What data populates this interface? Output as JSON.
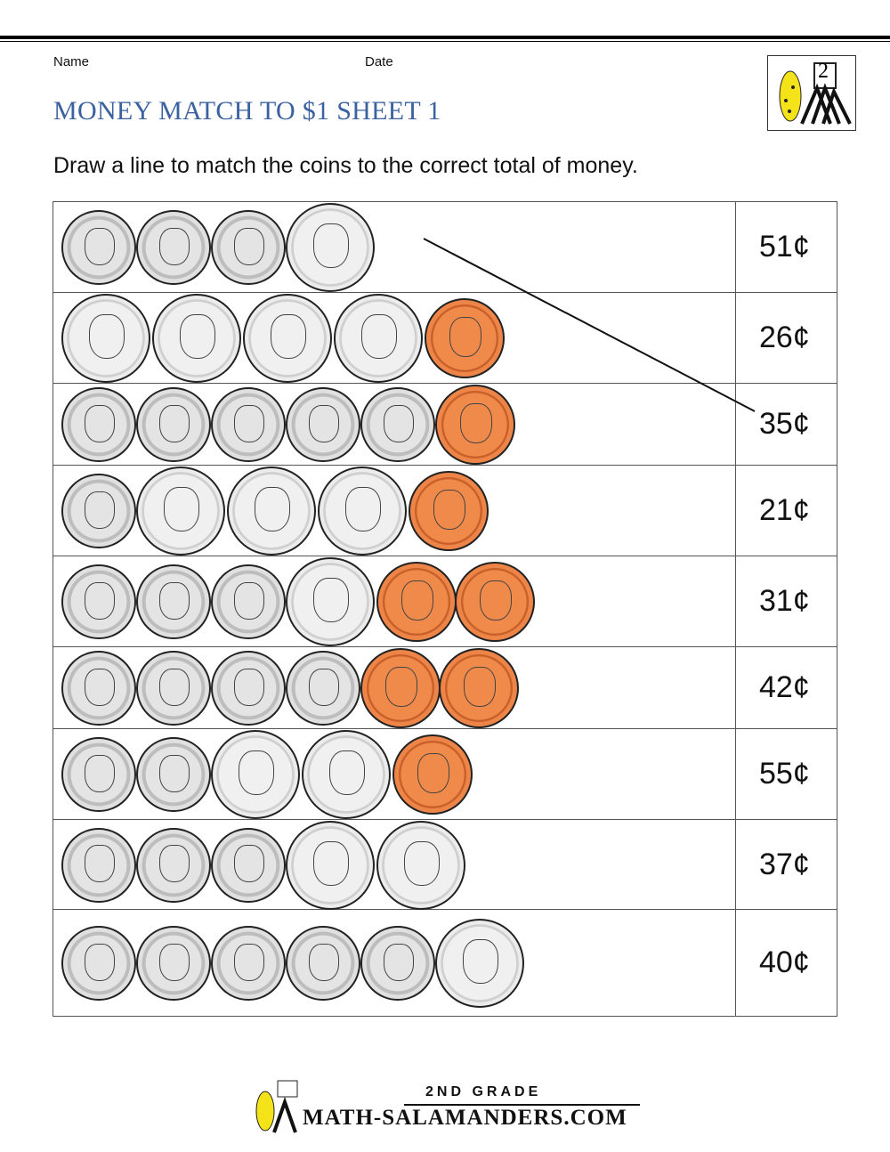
{
  "header": {
    "name_label": "Name",
    "date_label": "Date",
    "title": "MONEY MATCH TO $1 SHEET 1",
    "instructions": "Draw a line to match the coins to the correct total of money.",
    "logo_text": "2"
  },
  "rows": [
    {
      "coins": [
        "dime",
        "dime",
        "dime",
        "nickel"
      ],
      "amount": "51¢"
    },
    {
      "coins": [
        "nickel",
        "nickel",
        "nickel",
        "nickel",
        "penny"
      ],
      "amount": "26¢"
    },
    {
      "coins": [
        "dime",
        "dime",
        "dime",
        "dime",
        "dime",
        "penny"
      ],
      "amount": "35¢"
    },
    {
      "coins": [
        "dime",
        "nickel",
        "nickel",
        "nickel",
        "penny"
      ],
      "amount": "21¢"
    },
    {
      "coins": [
        "dime",
        "dime",
        "dime",
        "nickel",
        "penny",
        "penny"
      ],
      "amount": "31¢"
    },
    {
      "coins": [
        "dime",
        "dime",
        "dime",
        "dime",
        "penny",
        "penny"
      ],
      "amount": "42¢"
    },
    {
      "coins": [
        "dime",
        "dime",
        "nickel",
        "nickel",
        "penny"
      ],
      "amount": "55¢"
    },
    {
      "coins": [
        "dime",
        "dime",
        "dime",
        "nickel",
        "nickel"
      ],
      "amount": "37¢"
    },
    {
      "coins": [
        "dime",
        "dime",
        "dime",
        "dime",
        "dime",
        "nickel"
      ],
      "amount": "40¢"
    }
  ],
  "example_line": {
    "from_row": 1,
    "to_amount": "35¢"
  },
  "footer": {
    "grade": "2ND GRADE",
    "site": "MATH-SALAMANDERS.COM"
  }
}
